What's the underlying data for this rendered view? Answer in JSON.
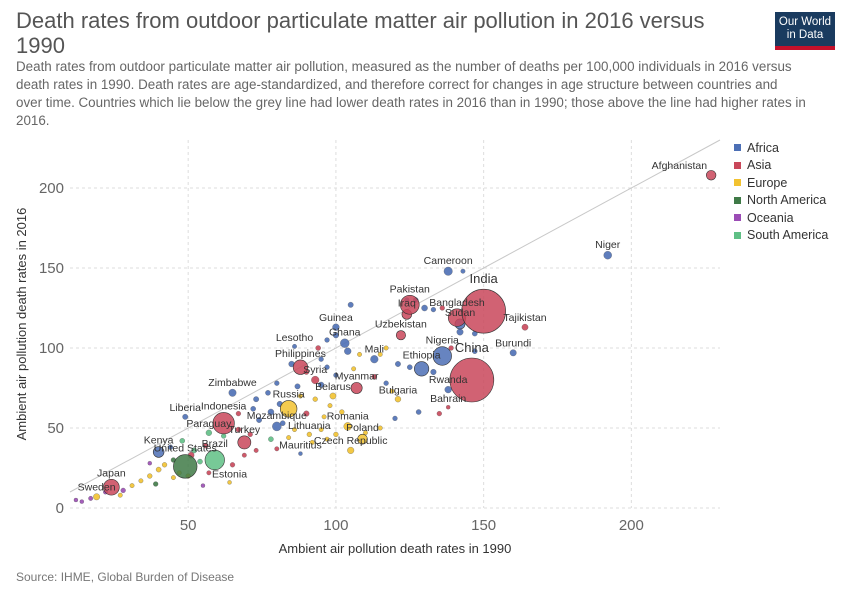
{
  "header": {
    "title": "Death rates from outdoor particulate matter air pollution in 2016 versus 1990",
    "subtitle": "Death rates from outdoor particulate matter air pollution, measured as the number of deaths per 100,000 individuals in 2016 versus death rates in 1990. Death rates are age-standardized, and therefore correct for changes in age structure between countries and over time. Countries which lie below the grey line had lower death rates in 2016 than in 1990; those above the line had higher rates in 2016.",
    "logo_line1": "Our World",
    "logo_line2": "in Data"
  },
  "footer": {
    "source": "Source: IHME, Global Burden of Disease"
  },
  "chart_data": {
    "type": "scatter",
    "xlabel": "Ambient air pollution death rates in 1990",
    "ylabel": "Ambient air pollution death rates in 2016",
    "xlim": [
      10,
      230
    ],
    "ylim": [
      0,
      230
    ],
    "xticks": [
      50,
      100,
      150,
      200
    ],
    "yticks": [
      0,
      50,
      100,
      150,
      200
    ],
    "grid": true,
    "diagonal_reference_line": true,
    "legend_position": "right",
    "regions": [
      {
        "name": "Africa",
        "color": "#4c6fb5"
      },
      {
        "name": "Asia",
        "color": "#c9475a"
      },
      {
        "name": "Europe",
        "color": "#f2c230"
      },
      {
        "name": "North America",
        "color": "#3f7a47"
      },
      {
        "name": "Oceania",
        "color": "#9b4cb5"
      },
      {
        "name": "South America",
        "color": "#5fbf85"
      }
    ],
    "labeled_points": [
      {
        "name": "Afghanistan",
        "x": 227,
        "y": 208,
        "region": "Asia",
        "pop": 35
      },
      {
        "name": "Niger",
        "x": 192,
        "y": 158,
        "region": "Africa",
        "pop": 20
      },
      {
        "name": "Cameroon",
        "x": 138,
        "y": 148,
        "region": "Africa",
        "pop": 24
      },
      {
        "name": "India",
        "x": 150,
        "y": 123,
        "region": "Asia",
        "pop": 1324
      },
      {
        "name": "Pakistan",
        "x": 125,
        "y": 127,
        "region": "Asia",
        "pop": 193
      },
      {
        "name": "Iraq",
        "x": 124,
        "y": 121,
        "region": "Asia",
        "pop": 37
      },
      {
        "name": "Bangladesh",
        "x": 141,
        "y": 119,
        "region": "Asia",
        "pop": 163
      },
      {
        "name": "Sudan",
        "x": 142,
        "y": 115,
        "region": "Africa",
        "pop": 40
      },
      {
        "name": "Tajikistan",
        "x": 164,
        "y": 113,
        "region": "Asia",
        "pop": 9
      },
      {
        "name": "Guinea",
        "x": 100,
        "y": 113,
        "region": "Africa",
        "pop": 12
      },
      {
        "name": "Uzbekistan",
        "x": 122,
        "y": 108,
        "region": "Asia",
        "pop": 32
      },
      {
        "name": "Ghana",
        "x": 103,
        "y": 103,
        "region": "Africa",
        "pop": 28
      },
      {
        "name": "Lesotho",
        "x": 86,
        "y": 101,
        "region": "Africa",
        "pop": 2
      },
      {
        "name": "Burundi",
        "x": 160,
        "y": 97,
        "region": "Africa",
        "pop": 10
      },
      {
        "name": "Nigeria",
        "x": 136,
        "y": 95,
        "region": "Africa",
        "pop": 186
      },
      {
        "name": "Ethiopia",
        "x": 129,
        "y": 87,
        "region": "Africa",
        "pop": 102
      },
      {
        "name": "Philippines",
        "x": 88,
        "y": 88,
        "region": "Asia",
        "pop": 103
      },
      {
        "name": "Mali",
        "x": 113,
        "y": 93,
        "region": "Africa",
        "pop": 18
      },
      {
        "name": "China",
        "x": 146,
        "y": 80,
        "region": "Asia",
        "pop": 1379
      },
      {
        "name": "Syria",
        "x": 93,
        "y": 80,
        "region": "Asia",
        "pop": 18
      },
      {
        "name": "Myanmar",
        "x": 107,
        "y": 75,
        "region": "Asia",
        "pop": 53
      },
      {
        "name": "Rwanda",
        "x": 138,
        "y": 74,
        "region": "Africa",
        "pop": 12
      },
      {
        "name": "Zimbabwe",
        "x": 65,
        "y": 72,
        "region": "Africa",
        "pop": 16
      },
      {
        "name": "Belarus",
        "x": 99,
        "y": 70,
        "region": "Europe",
        "pop": 9
      },
      {
        "name": "Bulgaria",
        "x": 121,
        "y": 68,
        "region": "Europe",
        "pop": 7
      },
      {
        "name": "Bahrain",
        "x": 138,
        "y": 63,
        "region": "Asia",
        "pop": 1
      },
      {
        "name": "Russia",
        "x": 84,
        "y": 62,
        "region": "Europe",
        "pop": 144
      },
      {
        "name": "Liberia",
        "x": 49,
        "y": 57,
        "region": "Africa",
        "pop": 5
      },
      {
        "name": "Indonesia",
        "x": 62,
        "y": 53,
        "region": "Asia",
        "pop": 261
      },
      {
        "name": "Mozambique",
        "x": 80,
        "y": 51,
        "region": "Africa",
        "pop": 29
      },
      {
        "name": "Romania",
        "x": 104,
        "y": 51,
        "region": "Europe",
        "pop": 20
      },
      {
        "name": "Paraguay",
        "x": 57,
        "y": 47,
        "region": "South America",
        "pop": 7
      },
      {
        "name": "Lithuania",
        "x": 91,
        "y": 46,
        "region": "Europe",
        "pop": 3
      },
      {
        "name": "Turkey",
        "x": 69,
        "y": 41,
        "region": "Asia",
        "pop": 79
      },
      {
        "name": "Poland",
        "x": 109,
        "y": 43,
        "region": "Europe",
        "pop": 38
      },
      {
        "name": "Kenya",
        "x": 40,
        "y": 35,
        "region": "Africa",
        "pop": 48
      },
      {
        "name": "Czech Republic",
        "x": 105,
        "y": 36,
        "region": "Europe",
        "pop": 11
      },
      {
        "name": "Mauritius",
        "x": 88,
        "y": 34,
        "region": "Africa",
        "pop": 1
      },
      {
        "name": "Brazil",
        "x": 59,
        "y": 30,
        "region": "South America",
        "pop": 208
      },
      {
        "name": "United States",
        "x": 49,
        "y": 26,
        "region": "North America",
        "pop": 323
      },
      {
        "name": "Estonia",
        "x": 64,
        "y": 16,
        "region": "Europe",
        "pop": 1
      },
      {
        "name": "Japan",
        "x": 24,
        "y": 13,
        "region": "Asia",
        "pop": 127
      },
      {
        "name": "Sweden",
        "x": 19,
        "y": 7,
        "region": "Europe",
        "pop": 10
      }
    ],
    "unlabeled_points": [
      {
        "x": 105,
        "y": 127,
        "region": "Africa",
        "pop": 5
      },
      {
        "x": 127,
        "y": 130,
        "region": "Africa",
        "pop": 4
      },
      {
        "x": 130,
        "y": 125,
        "region": "Africa",
        "pop": 8
      },
      {
        "x": 136,
        "y": 125,
        "region": "Asia",
        "pop": 3
      },
      {
        "x": 142,
        "y": 110,
        "region": "Africa",
        "pop": 10
      },
      {
        "x": 147,
        "y": 109,
        "region": "Africa",
        "pop": 4
      },
      {
        "x": 100,
        "y": 108,
        "region": "Africa",
        "pop": 6
      },
      {
        "x": 97,
        "y": 105,
        "region": "Africa",
        "pop": 3
      },
      {
        "x": 104,
        "y": 98,
        "region": "Africa",
        "pop": 12
      },
      {
        "x": 94,
        "y": 100,
        "region": "Asia",
        "pop": 4
      },
      {
        "x": 108,
        "y": 96,
        "region": "Europe",
        "pop": 2
      },
      {
        "x": 115,
        "y": 96,
        "region": "Europe",
        "pop": 2
      },
      {
        "x": 117,
        "y": 100,
        "region": "Europe",
        "pop": 2
      },
      {
        "x": 121,
        "y": 90,
        "region": "Africa",
        "pop": 5
      },
      {
        "x": 125,
        "y": 88,
        "region": "Africa",
        "pop": 4
      },
      {
        "x": 133,
        "y": 85,
        "region": "Africa",
        "pop": 6
      },
      {
        "x": 139,
        "y": 100,
        "region": "Asia",
        "pop": 3
      },
      {
        "x": 147,
        "y": 98,
        "region": "Africa",
        "pop": 4
      },
      {
        "x": 85,
        "y": 90,
        "region": "Africa",
        "pop": 7
      },
      {
        "x": 90,
        "y": 85,
        "region": "Asia",
        "pop": 4
      },
      {
        "x": 95,
        "y": 77,
        "region": "Africa",
        "pop": 6
      },
      {
        "x": 100,
        "y": 83,
        "region": "Africa",
        "pop": 3
      },
      {
        "x": 106,
        "y": 87,
        "region": "Europe",
        "pop": 2
      },
      {
        "x": 113,
        "y": 82,
        "region": "Asia",
        "pop": 4
      },
      {
        "x": 117,
        "y": 78,
        "region": "Africa",
        "pop": 3
      },
      {
        "x": 119,
        "y": 73,
        "region": "Europe",
        "pop": 2
      },
      {
        "x": 87,
        "y": 76,
        "region": "Africa",
        "pop": 5
      },
      {
        "x": 80,
        "y": 78,
        "region": "Africa",
        "pop": 3
      },
      {
        "x": 77,
        "y": 72,
        "region": "Africa",
        "pop": 4
      },
      {
        "x": 73,
        "y": 68,
        "region": "Africa",
        "pop": 5
      },
      {
        "x": 81,
        "y": 65,
        "region": "Africa",
        "pop": 6
      },
      {
        "x": 88,
        "y": 70,
        "region": "Europe",
        "pop": 2
      },
      {
        "x": 93,
        "y": 68,
        "region": "Europe",
        "pop": 3
      },
      {
        "x": 98,
        "y": 64,
        "region": "Europe",
        "pop": 2
      },
      {
        "x": 102,
        "y": 60,
        "region": "Europe",
        "pop": 3
      },
      {
        "x": 96,
        "y": 57,
        "region": "Europe",
        "pop": 2
      },
      {
        "x": 90,
        "y": 59,
        "region": "Asia",
        "pop": 6
      },
      {
        "x": 78,
        "y": 60,
        "region": "Africa",
        "pop": 8
      },
      {
        "x": 72,
        "y": 62,
        "region": "Africa",
        "pop": 4
      },
      {
        "x": 67,
        "y": 59,
        "region": "Asia",
        "pop": 3
      },
      {
        "x": 74,
        "y": 55,
        "region": "Africa",
        "pop": 5
      },
      {
        "x": 82,
        "y": 53,
        "region": "Africa",
        "pop": 4
      },
      {
        "x": 86,
        "y": 49,
        "region": "Europe",
        "pop": 2
      },
      {
        "x": 95,
        "y": 49,
        "region": "Europe",
        "pop": 2
      },
      {
        "x": 100,
        "y": 46,
        "region": "Europe",
        "pop": 3
      },
      {
        "x": 110,
        "y": 47,
        "region": "Europe",
        "pop": 2
      },
      {
        "x": 115,
        "y": 50,
        "region": "Europe",
        "pop": 2
      },
      {
        "x": 120,
        "y": 56,
        "region": "Africa",
        "pop": 3
      },
      {
        "x": 128,
        "y": 60,
        "region": "Africa",
        "pop": 4
      },
      {
        "x": 135,
        "y": 59,
        "region": "Asia",
        "pop": 3
      },
      {
        "x": 67,
        "y": 49,
        "region": "Asia",
        "pop": 4
      },
      {
        "x": 62,
        "y": 45,
        "region": "South America",
        "pop": 3
      },
      {
        "x": 71,
        "y": 46,
        "region": "Asia",
        "pop": 3
      },
      {
        "x": 78,
        "y": 43,
        "region": "South America",
        "pop": 4
      },
      {
        "x": 80,
        "y": 37,
        "region": "Asia",
        "pop": 2
      },
      {
        "x": 84,
        "y": 44,
        "region": "Europe",
        "pop": 2
      },
      {
        "x": 92,
        "y": 41,
        "region": "Europe",
        "pop": 2
      },
      {
        "x": 97,
        "y": 43,
        "region": "Europe",
        "pop": 2
      },
      {
        "x": 56,
        "y": 39,
        "region": "Asia",
        "pop": 4
      },
      {
        "x": 52,
        "y": 36,
        "region": "South America",
        "pop": 5
      },
      {
        "x": 48,
        "y": 42,
        "region": "South America",
        "pop": 4
      },
      {
        "x": 44,
        "y": 38,
        "region": "Africa",
        "pop": 3
      },
      {
        "x": 51,
        "y": 33,
        "region": "Asia",
        "pop": 8
      },
      {
        "x": 54,
        "y": 29,
        "region": "South America",
        "pop": 4
      },
      {
        "x": 45,
        "y": 30,
        "region": "North America",
        "pop": 3
      },
      {
        "x": 42,
        "y": 27,
        "region": "Europe",
        "pop": 3
      },
      {
        "x": 47,
        "y": 22,
        "region": "Europe",
        "pop": 2
      },
      {
        "x": 50,
        "y": 20,
        "region": "Europe",
        "pop": 3
      },
      {
        "x": 45,
        "y": 19,
        "region": "Europe",
        "pop": 2
      },
      {
        "x": 40,
        "y": 24,
        "region": "Europe",
        "pop": 4
      },
      {
        "x": 37,
        "y": 20,
        "region": "Europe",
        "pop": 3
      },
      {
        "x": 34,
        "y": 17,
        "region": "Europe",
        "pop": 2
      },
      {
        "x": 39,
        "y": 15,
        "region": "North America",
        "pop": 3
      },
      {
        "x": 31,
        "y": 14,
        "region": "Europe",
        "pop": 2
      },
      {
        "x": 28,
        "y": 11,
        "region": "Oceania",
        "pop": 3
      },
      {
        "x": 22,
        "y": 10,
        "region": "Oceania",
        "pop": 2
      },
      {
        "x": 17,
        "y": 6,
        "region": "Oceania",
        "pop": 2
      },
      {
        "x": 14,
        "y": 4,
        "region": "Oceania",
        "pop": 1
      },
      {
        "x": 12,
        "y": 5,
        "region": "Oceania",
        "pop": 1
      },
      {
        "x": 27,
        "y": 8,
        "region": "Europe",
        "pop": 2
      },
      {
        "x": 55,
        "y": 14,
        "region": "Oceania",
        "pop": 1
      },
      {
        "x": 37,
        "y": 28,
        "region": "Oceania",
        "pop": 1
      },
      {
        "x": 57,
        "y": 22,
        "region": "Asia",
        "pop": 2
      },
      {
        "x": 65,
        "y": 27,
        "region": "Asia",
        "pop": 3
      },
      {
        "x": 69,
        "y": 33,
        "region": "Asia",
        "pop": 2
      },
      {
        "x": 73,
        "y": 36,
        "region": "Asia",
        "pop": 2
      },
      {
        "x": 95,
        "y": 93,
        "region": "Africa",
        "pop": 3
      },
      {
        "x": 97,
        "y": 88,
        "region": "Africa",
        "pop": 3
      },
      {
        "x": 124,
        "y": 130,
        "region": "Africa",
        "pop": 3
      },
      {
        "x": 133,
        "y": 124,
        "region": "Africa",
        "pop": 3
      },
      {
        "x": 143,
        "y": 148,
        "region": "Africa",
        "pop": 2
      }
    ]
  }
}
